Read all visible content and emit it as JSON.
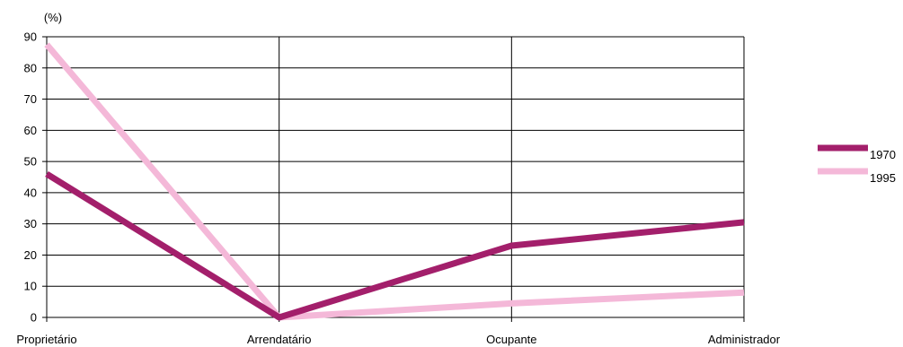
{
  "chart_data": {
    "type": "line",
    "title": "",
    "xlabel": "",
    "ylabel": "(%)",
    "ylim": [
      0,
      90
    ],
    "yticks": [
      0,
      10,
      20,
      30,
      40,
      50,
      60,
      70,
      80,
      90
    ],
    "grid": true,
    "legend_position": "right",
    "categories": [
      "Proprietário",
      "Arrendatário",
      "Ocupante",
      "Administrador"
    ],
    "series": [
      {
        "name": "1970",
        "color": "#a31f6b",
        "values": [
          46,
          0,
          23,
          30.5
        ]
      },
      {
        "name": "1995",
        "color": "#f4b8d8",
        "values": [
          87.5,
          0,
          4.5,
          8
        ]
      }
    ]
  }
}
